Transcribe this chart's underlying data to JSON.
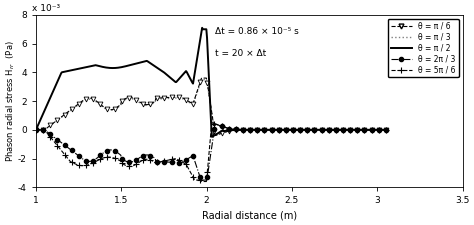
{
  "xlabel": "Radial distance (m)",
  "ylabel": "Phason radial stress H$_{rr}$ (Pa)",
  "xlim": [
    1.0,
    3.5
  ],
  "ylim": [
    -0.004,
    0.008
  ],
  "xticks": [
    1.0,
    1.5,
    2.0,
    2.5,
    3.0,
    3.5
  ],
  "ytick_labels": [
    "-4",
    "-2",
    "0",
    "2",
    "4",
    "6",
    "8"
  ],
  "yticks": [
    -0.004,
    -0.002,
    0.0,
    0.002,
    0.004,
    0.006,
    0.008
  ],
  "annotation_line1": "Δt = 0.86 × 10⁻⁵ s",
  "annotation_line2": "t = 20 × Δt",
  "legend_entries": [
    "θ = π / 6",
    "θ = π / 3",
    "θ = π / 2",
    "θ = 2π / 3",
    "θ = 5π / 6"
  ],
  "scale_label": "x 10⁻³",
  "background_color": "#ffffff"
}
